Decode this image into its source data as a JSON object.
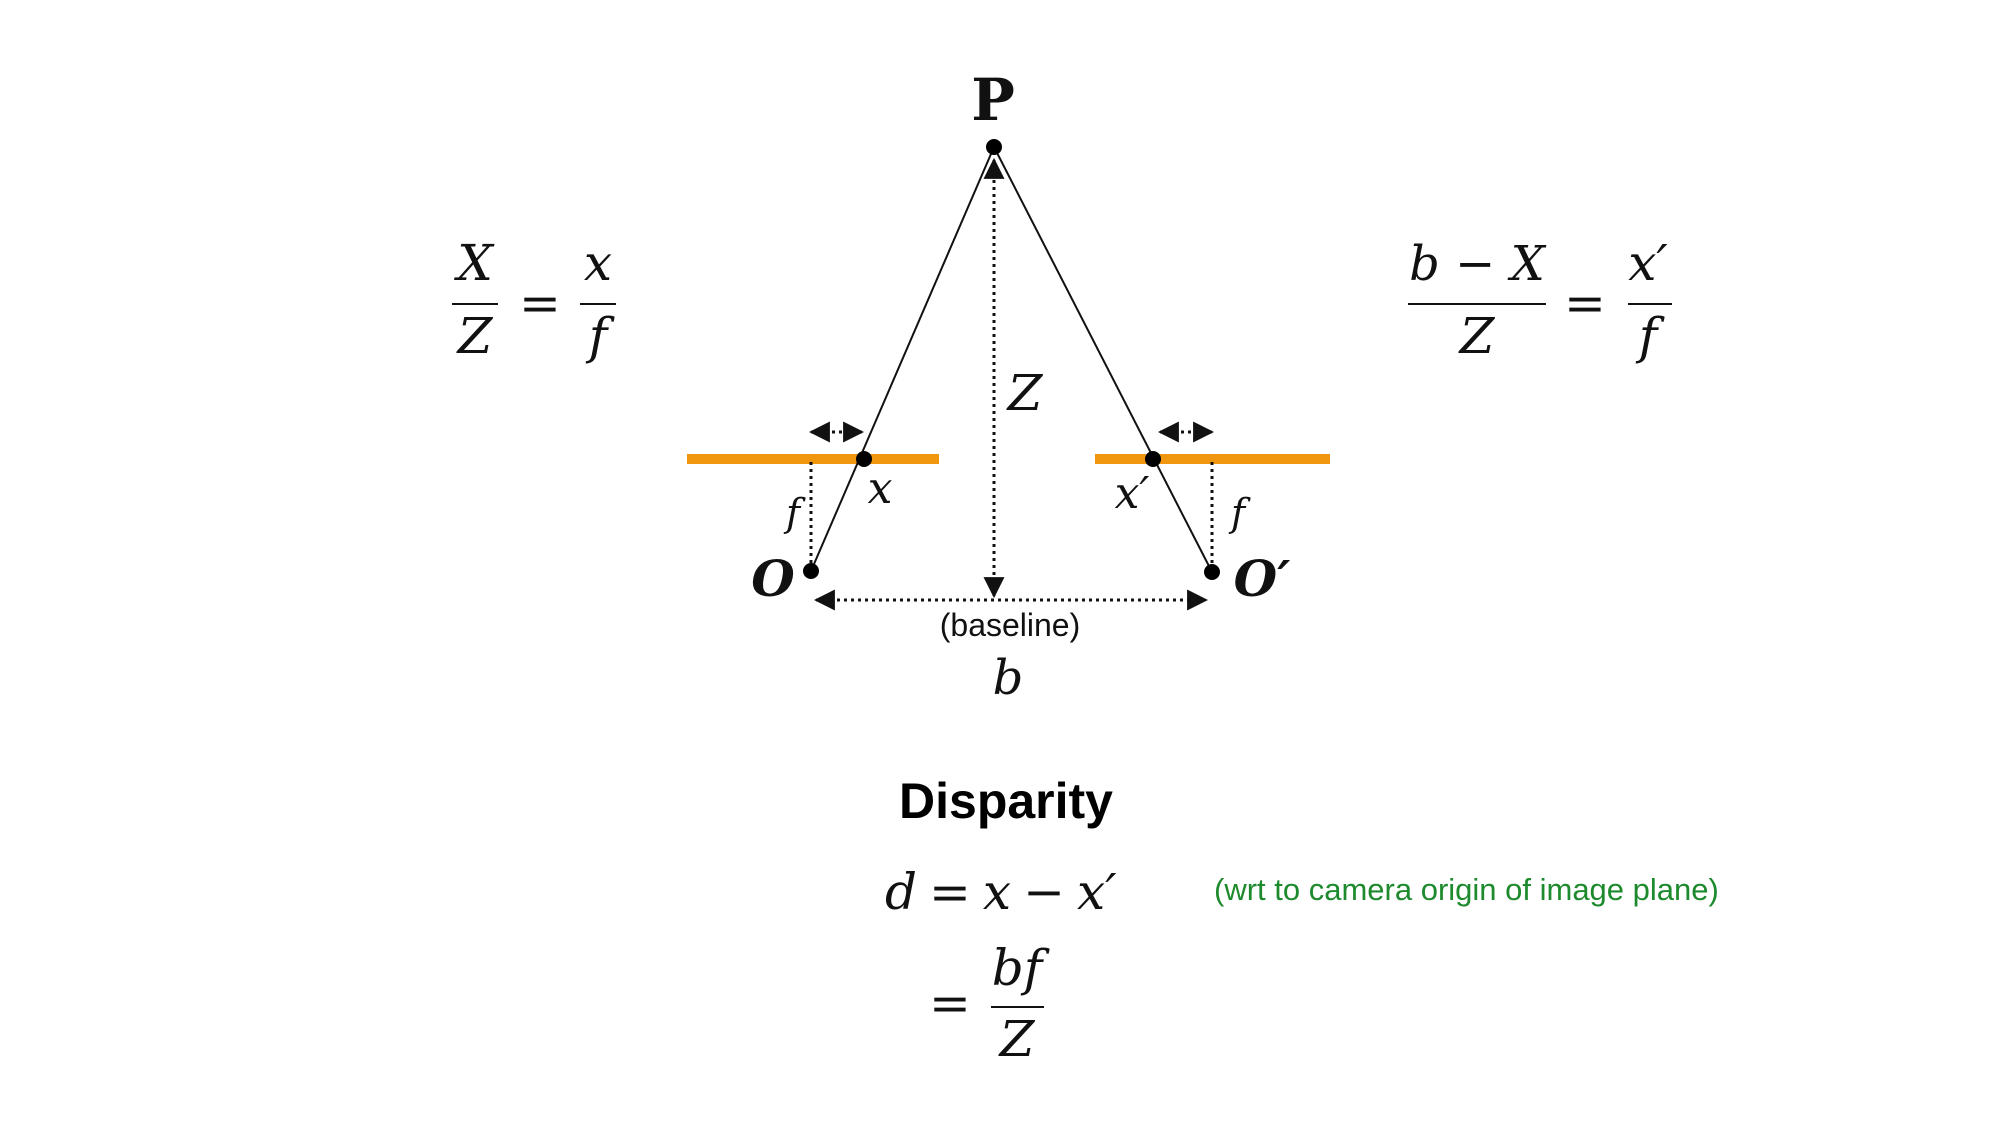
{
  "diagram": {
    "point_label": "P",
    "left_origin_label": "O",
    "right_origin_label": "O",
    "right_origin_prime": "′",
    "depth_label": "Z",
    "left_image_label": "x",
    "right_image_label": "x",
    "right_image_prime": "′",
    "left_focal_label": "f",
    "right_focal_label": "f",
    "baseline_caption": "(baseline)",
    "baseline_label": "b",
    "plane_color": "#f0960f"
  },
  "left_equation": {
    "num_left": "X",
    "den_left": "Z",
    "equals": "=",
    "num_right": "x",
    "den_right": "f"
  },
  "right_equation": {
    "num_left": "b − X",
    "den_left": "Z",
    "equals": "=",
    "num_right": "x",
    "num_right_prime": "′",
    "den_right": "f"
  },
  "disparity": {
    "title": "Disparity",
    "line1_lhs": "d",
    "line1_eq": "=",
    "line1_x": "x",
    "line1_minus": "−",
    "line1_xp": "x",
    "line1_prime": "′",
    "note": "(wrt to camera origin of image plane)",
    "line2_eq": "=",
    "line2_num": "bf",
    "line2_den": "Z"
  }
}
